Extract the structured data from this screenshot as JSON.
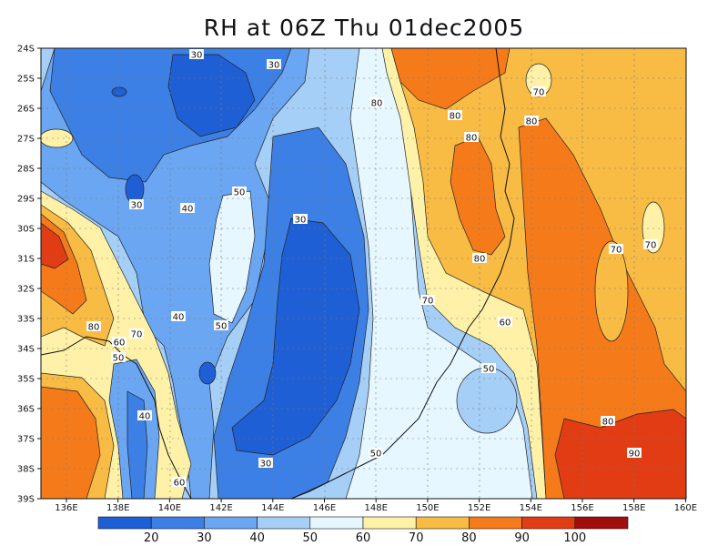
{
  "title": "RH at 06Z Thu 01dec2005",
  "map": {
    "lat_labels": [
      "24S",
      "25S",
      "26S",
      "27S",
      "28S",
      "29S",
      "30S",
      "31S",
      "32S",
      "33S",
      "34S",
      "35S",
      "36S",
      "37S",
      "38S",
      "39S"
    ],
    "lon_labels": [
      "136E",
      "138E",
      "140E",
      "142E",
      "144E",
      "146E",
      "148E",
      "150E",
      "152E",
      "154E",
      "156E",
      "158E",
      "160E"
    ],
    "contour_labels": [
      "30",
      "30",
      "80",
      "70",
      "80",
      "80",
      "80",
      "30",
      "50",
      "40",
      "30",
      "70",
      "70",
      "80",
      "70",
      "60",
      "80",
      "70",
      "60",
      "50",
      "40",
      "50",
      "40",
      "50",
      "60",
      "30",
      "50",
      "80",
      "90"
    ]
  },
  "colorbar": {
    "ticks": [
      "20",
      "30",
      "40",
      "50",
      "60",
      "70",
      "80",
      "90",
      "100"
    ],
    "colors": [
      "#1f5fd6",
      "#3c80e6",
      "#6aa6f2",
      "#a6cff7",
      "#e6f7ff",
      "#fff2a8",
      "#f8bb44",
      "#f57b1a",
      "#e23c14",
      "#a20d0d"
    ]
  }
}
